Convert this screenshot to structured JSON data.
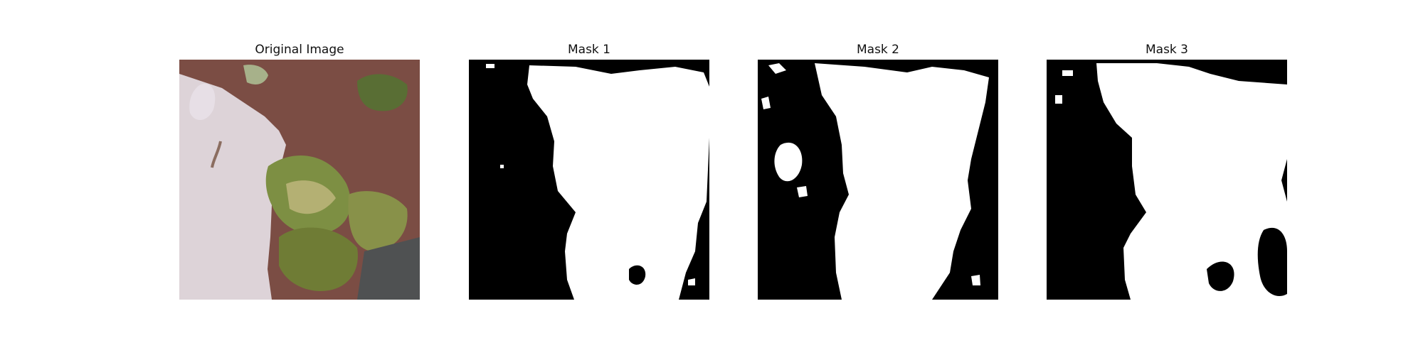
{
  "panels": [
    {
      "title": "Original Image"
    },
    {
      "title": "Mask 1"
    },
    {
      "title": "Mask 2"
    },
    {
      "title": "Mask 3"
    }
  ],
  "colors": {
    "background": "#ffffff",
    "mask_background": "#000000",
    "mask_foreground": "#ffffff",
    "sand": "#ddd3d8",
    "leaf_green": "#7a8740",
    "leaf_brown": "#8b5a4b"
  }
}
